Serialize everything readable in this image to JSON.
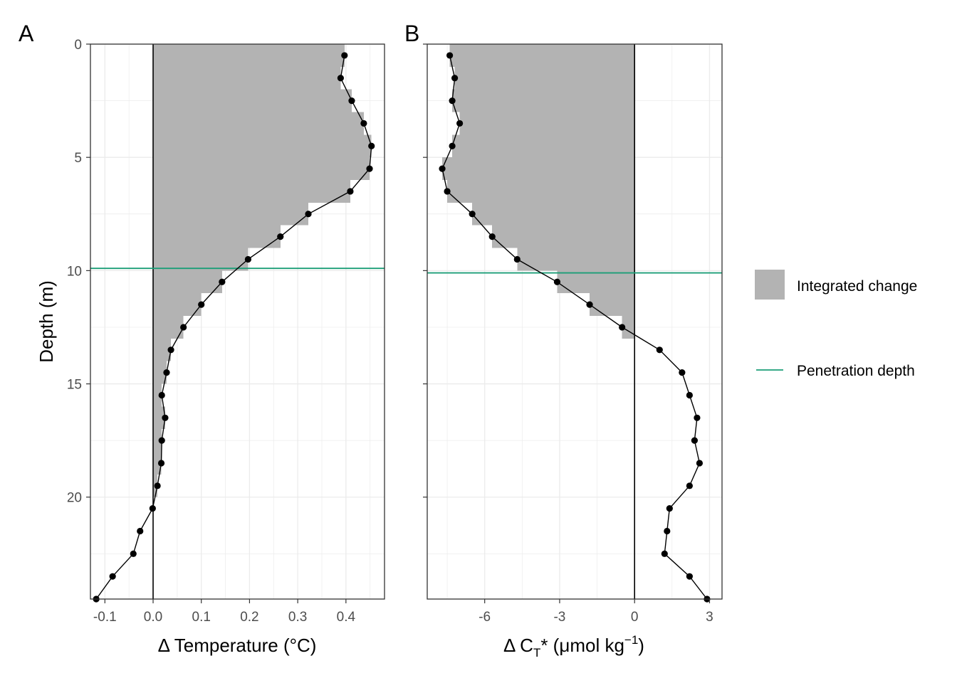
{
  "colors": {
    "fill": "#b3b3b3",
    "penetration": "#1b9e77",
    "points": "#000000",
    "grid": "#ebebeb",
    "panel_border": "#333333",
    "zero_line": "#000000"
  },
  "legend": {
    "placement": "right",
    "items": [
      {
        "label": "Integrated change",
        "kind": "fill"
      },
      {
        "label": "Penetration depth",
        "kind": "line"
      }
    ]
  },
  "chart_data": [
    {
      "type": "line",
      "panel": "A",
      "xlabel_prefix": "Δ",
      "xlabel": "Temperature",
      "xlabel_unit": "(°C)",
      "ylabel": "Depth (m)",
      "xlim": [
        -0.13,
        0.48
      ],
      "ylim": [
        24.5,
        0
      ],
      "y_reversed": true,
      "xticks": [
        -0.1,
        0,
        0.1,
        0.2,
        0.3,
        0.4
      ],
      "xtick_labels": [
        "-0.1",
        "0.0",
        "0.1",
        "0.2",
        "0.3",
        "0.4"
      ],
      "yticks": [
        0,
        5,
        10,
        15,
        20
      ],
      "ytick_labels": [
        "0",
        "5",
        "10",
        "15",
        "20"
      ],
      "grid": true,
      "penetration_depth": 9.9,
      "x": [
        0.397,
        0.389,
        0.412,
        0.437,
        0.453,
        0.449,
        0.409,
        0.322,
        0.264,
        0.197,
        0.143,
        0.1,
        0.063,
        0.037,
        0.028,
        0.018,
        0.025,
        0.018,
        0.017,
        0.009,
        -0.001,
        -0.027,
        -0.041,
        -0.084,
        -0.118
      ],
      "y": [
        0.5,
        1.5,
        2.5,
        3.5,
        4.5,
        5.5,
        6.5,
        7.5,
        8.5,
        9.5,
        10.5,
        11.5,
        12.5,
        13.5,
        14.5,
        15.5,
        16.5,
        17.5,
        18.5,
        19.5,
        20.5,
        21.5,
        22.5,
        23.5,
        24.5
      ]
    },
    {
      "type": "line",
      "panel": "B",
      "xlabel_prefix": "Δ C",
      "xlabel_sub": "T",
      "xlabel_mid": "* (μmol kg",
      "xlabel_sup": "−1",
      "xlabel_end": ")",
      "xlim": [
        -8.3,
        3.5
      ],
      "ylim": [
        24.5,
        0
      ],
      "y_reversed": true,
      "xticks": [
        -6,
        -3,
        0,
        3
      ],
      "xtick_labels": [
        "-6",
        "-3",
        "0",
        "3"
      ],
      "grid": true,
      "penetration_depth": 10.1,
      "x": [
        -7.4,
        -7.2,
        -7.3,
        -7.0,
        -7.3,
        -7.7,
        -7.5,
        -6.5,
        -5.7,
        -4.7,
        -3.1,
        -1.8,
        -0.5,
        1.0,
        1.9,
        2.2,
        2.5,
        2.4,
        2.6,
        2.2,
        1.4,
        1.3,
        1.2,
        2.2,
        2.9
      ],
      "y": [
        0.5,
        1.5,
        2.5,
        3.5,
        4.5,
        5.5,
        6.5,
        7.5,
        8.5,
        9.5,
        10.5,
        11.5,
        12.5,
        13.5,
        14.5,
        15.5,
        16.5,
        17.5,
        18.5,
        19.5,
        20.5,
        21.5,
        22.5,
        23.5,
        24.5
      ]
    }
  ]
}
